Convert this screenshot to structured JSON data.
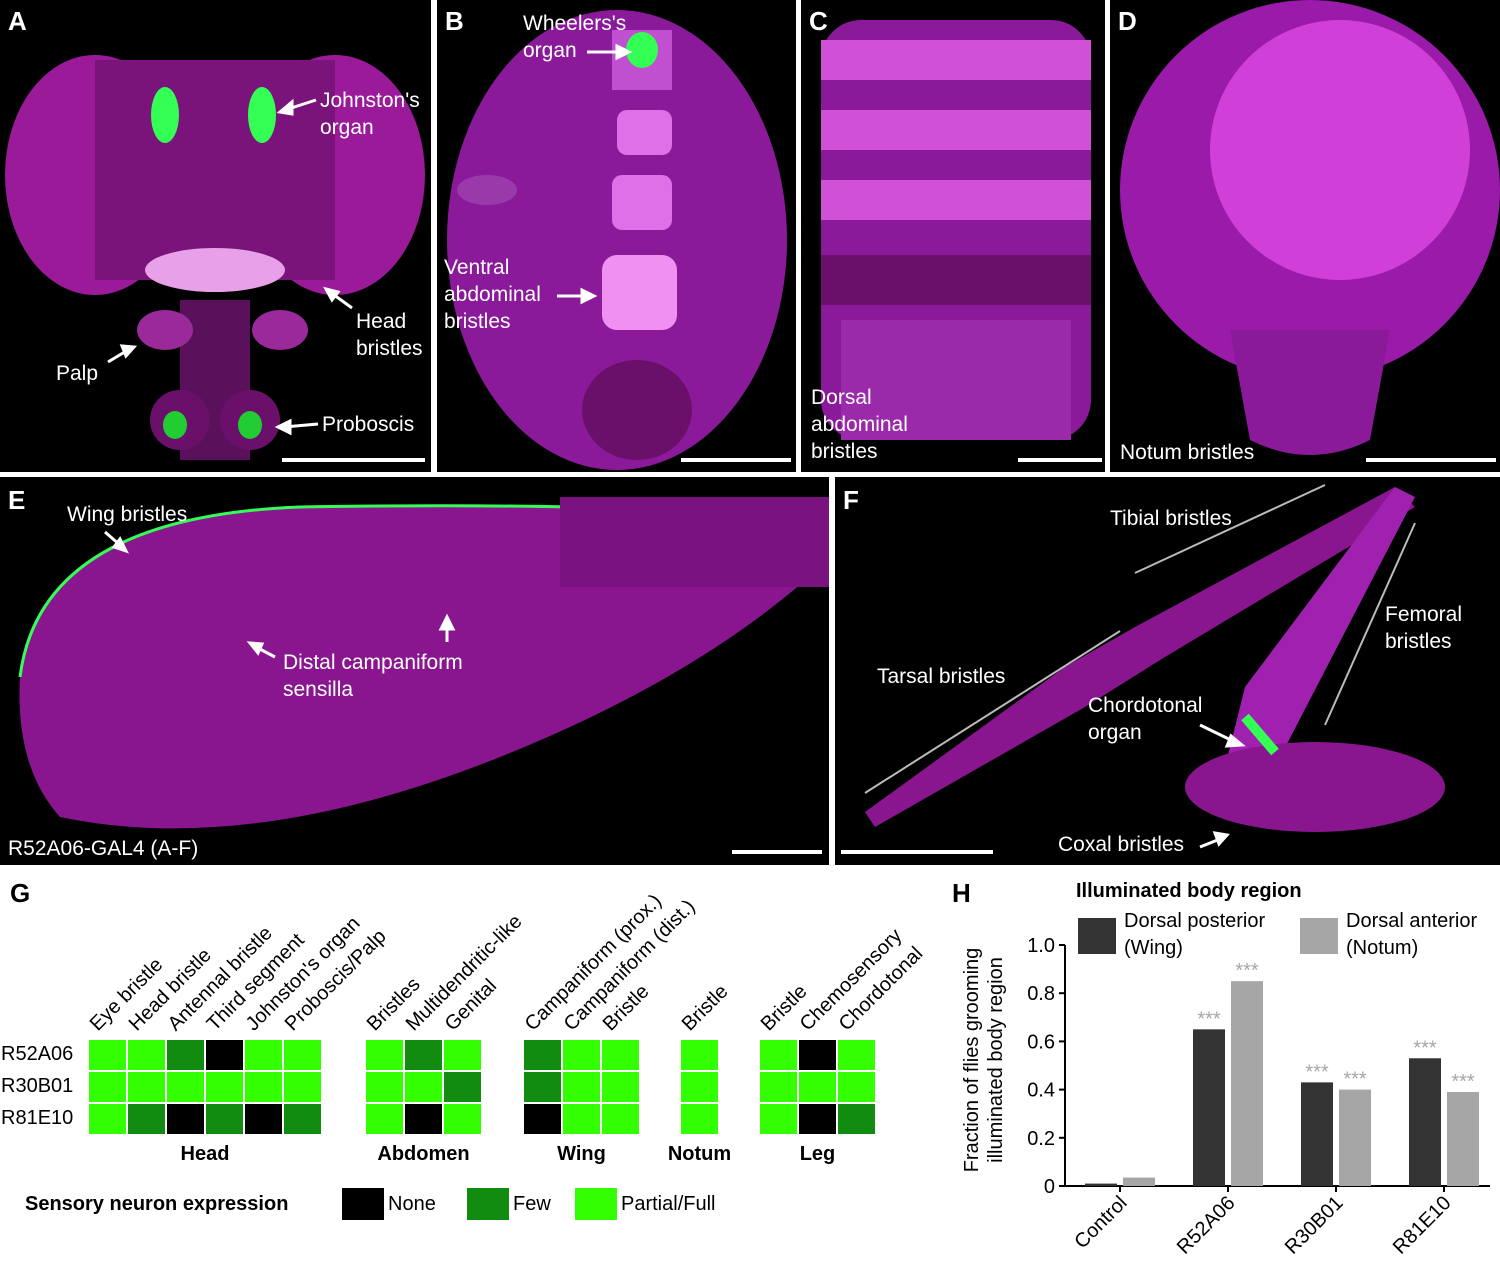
{
  "panels": {
    "A": {
      "letter": "A",
      "annotations": {
        "johnston": "Johnston's\norgan",
        "head_bristles": "Head\nbristles",
        "palp": "Palp",
        "proboscis": "Proboscis"
      }
    },
    "B": {
      "letter": "B",
      "annotations": {
        "wheelers": "Wheelers's\norgan",
        "ventral": "Ventral\nabdominal\nbristles"
      }
    },
    "C": {
      "letter": "C",
      "annotations": {
        "dorsal": "Dorsal\nabdominal\nbristles"
      }
    },
    "D": {
      "letter": "D",
      "annotations": {
        "notum": "Notum bristles"
      }
    },
    "E": {
      "letter": "E",
      "annotations": {
        "wing": "Wing bristles",
        "distal": "Distal campaniform\nsensilla",
        "genotype": "R52A06-GAL4 (A-F)"
      }
    },
    "F": {
      "letter": "F",
      "annotations": {
        "tibial": "Tibial bristles",
        "femoral": "Femoral\nbristles",
        "tarsal": "Tarsal bristles",
        "chordotonal": "Chordotonal\norgan",
        "coxal": "Coxal bristles"
      }
    },
    "G": {
      "letter": "G"
    },
    "H": {
      "letter": "H"
    }
  },
  "heatmap": {
    "groups": [
      {
        "name": "Head",
        "columns": [
          "Eye bristle",
          "Head bristle",
          "Antennal bristle",
          "Third segment",
          "Johnston's organ",
          "Proboscis/Palp"
        ]
      },
      {
        "name": "Abdomen",
        "columns": [
          "Bristles",
          "Multidendritic-like",
          "Genital"
        ]
      },
      {
        "name": "Wing",
        "columns": [
          "Campaniform (prox.)",
          "Campaniform (dist.)",
          "Bristle"
        ]
      },
      {
        "name": "Notum",
        "columns": [
          "Bristle"
        ]
      },
      {
        "name": "Leg",
        "columns": [
          "Bristle",
          "Chemosensory",
          "Chordotonal"
        ]
      }
    ],
    "rows": [
      "R52A06",
      "R30B01",
      "R81E10"
    ],
    "levels": {
      "0": "None",
      "1": "Few",
      "2": "Partial/Full"
    },
    "colors": {
      "0": "#000000",
      "1": "#118c11",
      "2": "#33ff00"
    },
    "values": [
      [
        [
          2,
          2,
          1,
          0,
          2,
          2
        ],
        [
          2,
          1,
          2
        ],
        [
          1,
          2,
          2
        ],
        [
          2
        ],
        [
          2,
          0,
          2
        ]
      ],
      [
        [
          2,
          2,
          2,
          2,
          2,
          2
        ],
        [
          2,
          2,
          1
        ],
        [
          1,
          2,
          2
        ],
        [
          2
        ],
        [
          2,
          2,
          2
        ]
      ],
      [
        [
          2,
          1,
          0,
          1,
          0,
          1
        ],
        [
          2,
          0,
          2
        ],
        [
          0,
          2,
          2
        ],
        [
          2
        ],
        [
          2,
          0,
          1
        ]
      ]
    ],
    "legend_title": "Sensory neuron expression"
  },
  "chart_data": {
    "type": "bar",
    "title": "Illuminated body region",
    "categories": [
      "Control",
      "R52A06",
      "R30B01",
      "R81E10"
    ],
    "series": [
      {
        "name": "Dorsal posterior\n(Wing)",
        "color": "#333333",
        "values": [
          0.01,
          0.65,
          0.43,
          0.53
        ],
        "significance": [
          "",
          "***",
          "***",
          "***"
        ]
      },
      {
        "name": "Dorsal anterior\n(Notum)",
        "color": "#a6a6a6",
        "values": [
          0.035,
          0.85,
          0.4,
          0.39
        ],
        "significance": [
          "",
          "***",
          "***",
          "***"
        ]
      }
    ],
    "ylabel": "Fraction of flies grooming\nilluminated body region",
    "xlabel": "",
    "ylim": [
      0,
      1.0
    ],
    "yticks": [
      "0",
      "0.2",
      "0.4",
      "0.6",
      "0.8",
      "1.0"
    ],
    "legend_position": "top"
  }
}
